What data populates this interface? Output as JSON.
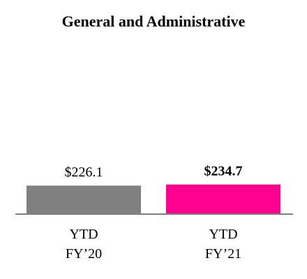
{
  "chart_data": {
    "type": "bar",
    "title": "General and Administrative",
    "categories": [
      [
        "YTD",
        "FY’20"
      ],
      [
        "YTD",
        "FY’21"
      ]
    ],
    "values": [
      226.1,
      234.7
    ],
    "value_labels": [
      "$226.1",
      "$234.7"
    ],
    "value_label_bold": [
      false,
      true
    ],
    "colors": [
      "#808080",
      "#ff0090"
    ],
    "axis_color": "#808080",
    "xlabel": "",
    "ylabel": "",
    "ylim": [
      0,
      1200
    ],
    "grid": false,
    "legend": "none"
  }
}
